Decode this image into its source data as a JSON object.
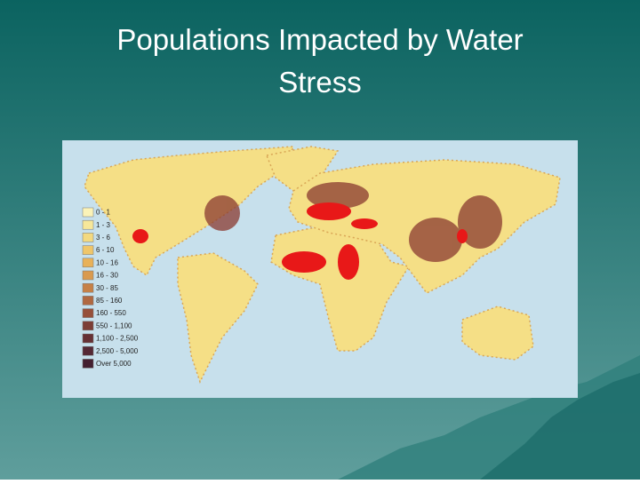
{
  "header": {
    "title_lines": [
      "Populations Impacted by Water",
      "Stress"
    ]
  },
  "legend": [
    {
      "label": "0 - 1",
      "color": "#fbf3b8"
    },
    {
      "label": "1 - 3",
      "color": "#f7e79a"
    },
    {
      "label": "3 - 6",
      "color": "#f3d980"
    },
    {
      "label": "6 - 10",
      "color": "#efc66a"
    },
    {
      "label": "10 - 16",
      "color": "#e8b158"
    },
    {
      "label": "16 - 30",
      "color": "#d99a4e"
    },
    {
      "label": "30 - 85",
      "color": "#c68046"
    },
    {
      "label": "85 - 160",
      "color": "#b06840"
    },
    {
      "label": "160 - 550",
      "color": "#96503a"
    },
    {
      "label": "550 - 1,100",
      "color": "#7c3e36"
    },
    {
      "label": "1,100 - 2,500",
      "color": "#663034"
    },
    {
      "label": "2,500 - 5,000",
      "color": "#552834"
    },
    {
      "label": "Over 5,000",
      "color": "#442030"
    }
  ]
}
